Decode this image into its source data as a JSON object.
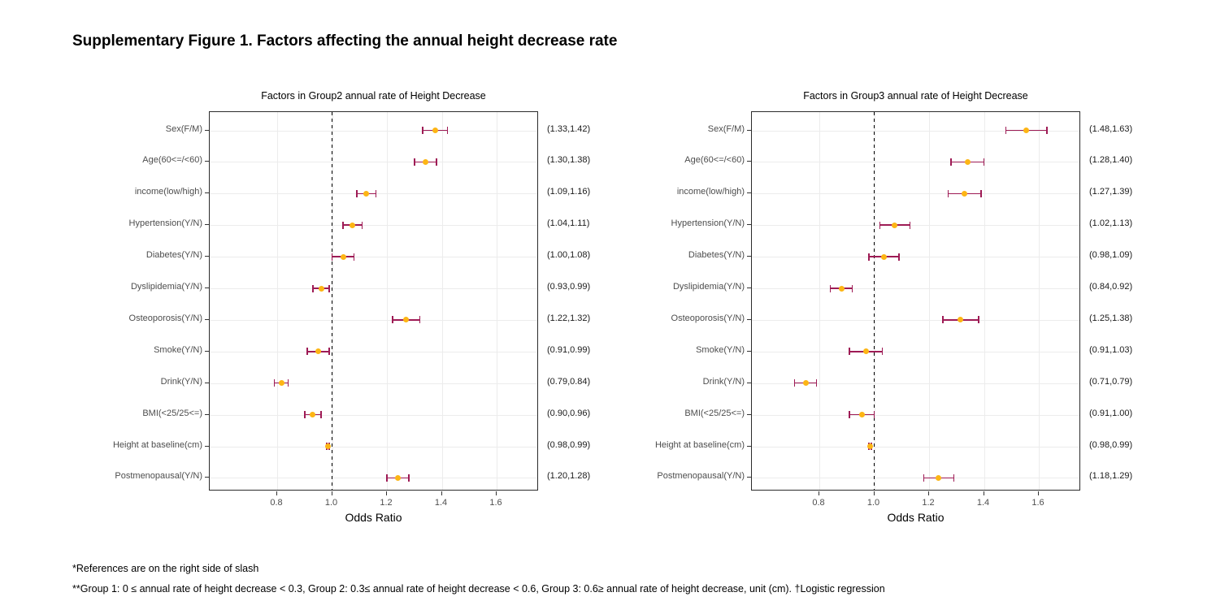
{
  "figure_title": "Supplementary Figure 1. Factors affecting the annual height decrease rate",
  "footnotes": {
    "line1": "*References are on the right side of slash",
    "line2": "**Group 1: 0 ≤ annual rate of height decrease < 0.3, Group 2: 0.3≤ annual rate of height decrease < 0.6, Group 3: 0.6≥ annual rate of height decrease, unit (cm). †Logistic regression"
  },
  "colors": {
    "error_bar": "#9E1B55",
    "point": "#FDB515",
    "gridline": "#ECECEC",
    "panel_border": "#2B2B2B",
    "reference_line": "#000000",
    "tick_mark": "#333333",
    "axis_text": "#4D4D4D",
    "ci_text": "#1A1A1A"
  },
  "chart_data": [
    {
      "type": "scatter",
      "variant": "forest-plot",
      "title": "Factors in Group2 annual rate of Height Decrease",
      "xlabel": "Odds Ratio",
      "x_ticks": [
        0.8,
        1.0,
        1.2,
        1.4,
        1.6
      ],
      "xlim": [
        0.554,
        1.754
      ],
      "ref_line": 1.0,
      "grid": true,
      "rows": [
        {
          "label": "Sex(F/M)",
          "or": 1.375,
          "lo": 1.33,
          "hi": 1.42,
          "ci_label": "(1.33,1.42)"
        },
        {
          "label": "Age(60<=/<60)",
          "or": 1.34,
          "lo": 1.3,
          "hi": 1.38,
          "ci_label": "(1.30,1.38)"
        },
        {
          "label": "income(low/high)",
          "or": 1.125,
          "lo": 1.09,
          "hi": 1.16,
          "ci_label": "(1.09,1.16)"
        },
        {
          "label": "Hypertension(Y/N)",
          "or": 1.075,
          "lo": 1.04,
          "hi": 1.11,
          "ci_label": "(1.04,1.11)"
        },
        {
          "label": "Diabetes(Y/N)",
          "or": 1.04,
          "lo": 1.0,
          "hi": 1.08,
          "ci_label": "(1.00,1.08)"
        },
        {
          "label": "Dyslipidemia(Y/N)",
          "or": 0.96,
          "lo": 0.93,
          "hi": 0.99,
          "ci_label": "(0.93,0.99)"
        },
        {
          "label": "Osteoporosis(Y/N)",
          "or": 1.27,
          "lo": 1.22,
          "hi": 1.32,
          "ci_label": "(1.22,1.32)"
        },
        {
          "label": "Smoke(Y/N)",
          "or": 0.95,
          "lo": 0.91,
          "hi": 0.99,
          "ci_label": "(0.91,0.99)"
        },
        {
          "label": "Drink(Y/N)",
          "or": 0.815,
          "lo": 0.79,
          "hi": 0.84,
          "ci_label": "(0.79,0.84)"
        },
        {
          "label": "BMI(<25/25<=)",
          "or": 0.93,
          "lo": 0.9,
          "hi": 0.96,
          "ci_label": "(0.90,0.96)"
        },
        {
          "label": "Height at baseline(cm)",
          "or": 0.985,
          "lo": 0.98,
          "hi": 0.99,
          "ci_label": "(0.98,0.99)"
        },
        {
          "label": "Postmenopausal(Y/N)",
          "or": 1.24,
          "lo": 1.2,
          "hi": 1.28,
          "ci_label": "(1.20,1.28)"
        }
      ]
    },
    {
      "type": "scatter",
      "variant": "forest-plot",
      "title": "Factors in Group3 annual rate of Height Decrease",
      "xlabel": "Odds Ratio",
      "x_ticks": [
        0.8,
        1.0,
        1.2,
        1.4,
        1.6
      ],
      "xlim": [
        0.554,
        1.754
      ],
      "ref_line": 1.0,
      "grid": true,
      "rows": [
        {
          "label": "Sex(F/M)",
          "or": 1.555,
          "lo": 1.48,
          "hi": 1.63,
          "ci_label": "(1.48,1.63)"
        },
        {
          "label": "Age(60<=/<60)",
          "or": 1.34,
          "lo": 1.28,
          "hi": 1.4,
          "ci_label": "(1.28,1.40)"
        },
        {
          "label": "income(low/high)",
          "or": 1.33,
          "lo": 1.27,
          "hi": 1.39,
          "ci_label": "(1.27,1.39)"
        },
        {
          "label": "Hypertension(Y/N)",
          "or": 1.075,
          "lo": 1.02,
          "hi": 1.13,
          "ci_label": "(1.02,1.13)"
        },
        {
          "label": "Diabetes(Y/N)",
          "or": 1.035,
          "lo": 0.98,
          "hi": 1.09,
          "ci_label": "(0.98,1.09)"
        },
        {
          "label": "Dyslipidemia(Y/N)",
          "or": 0.88,
          "lo": 0.84,
          "hi": 0.92,
          "ci_label": "(0.84,0.92)"
        },
        {
          "label": "Osteoporosis(Y/N)",
          "or": 1.315,
          "lo": 1.25,
          "hi": 1.38,
          "ci_label": "(1.25,1.38)"
        },
        {
          "label": "Smoke(Y/N)",
          "or": 0.97,
          "lo": 0.91,
          "hi": 1.03,
          "ci_label": "(0.91,1.03)"
        },
        {
          "label": "Drink(Y/N)",
          "or": 0.75,
          "lo": 0.71,
          "hi": 0.79,
          "ci_label": "(0.71,0.79)"
        },
        {
          "label": "BMI(<25/25<=)",
          "or": 0.955,
          "lo": 0.91,
          "hi": 1.0,
          "ci_label": "(0.91,1.00)"
        },
        {
          "label": "Height at baseline(cm)",
          "or": 0.985,
          "lo": 0.98,
          "hi": 0.99,
          "ci_label": "(0.98,0.99)"
        },
        {
          "label": "Postmenopausal(Y/N)",
          "or": 1.235,
          "lo": 1.18,
          "hi": 1.29,
          "ci_label": "(1.18,1.29)"
        }
      ]
    }
  ]
}
